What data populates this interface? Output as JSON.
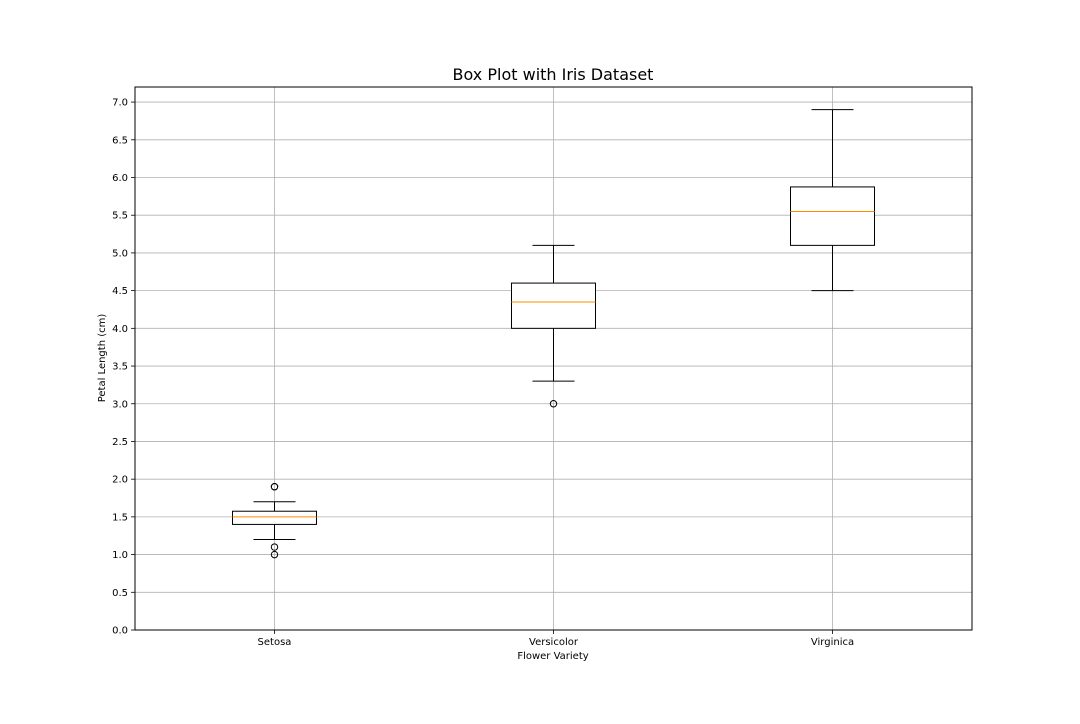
{
  "chart_data": {
    "type": "box",
    "title": "Box Plot with Iris Dataset",
    "xlabel": "Flower Variety",
    "ylabel": "Petal Length (cm)",
    "ylim": [
      0.0,
      7.2
    ],
    "yticks": [
      "0.0",
      "0.5",
      "1.0",
      "1.5",
      "2.0",
      "2.5",
      "3.0",
      "3.5",
      "4.0",
      "4.5",
      "5.0",
      "5.5",
      "6.0",
      "6.5",
      "7.0"
    ],
    "grid": true,
    "categories": [
      "Setosa",
      "Versicolor",
      "Virginica"
    ],
    "boxes": [
      {
        "category": "Setosa",
        "whisker_low": 1.2,
        "q1": 1.4,
        "median": 1.5,
        "q3": 1.575,
        "whisker_high": 1.7,
        "outliers": [
          1.0,
          1.1,
          1.9,
          1.9
        ]
      },
      {
        "category": "Versicolor",
        "whisker_low": 3.3,
        "q1": 4.0,
        "median": 4.35,
        "q3": 4.6,
        "whisker_high": 5.1,
        "outliers": [
          3.0
        ]
      },
      {
        "category": "Virginica",
        "whisker_low": 4.5,
        "q1": 5.1,
        "median": 5.55,
        "q3": 5.875,
        "whisker_high": 6.9,
        "outliers": []
      }
    ],
    "colors": {
      "box": "#000000",
      "median": "#ff8c00",
      "grid": "#b0b0b0",
      "outlier": "#000000"
    }
  }
}
